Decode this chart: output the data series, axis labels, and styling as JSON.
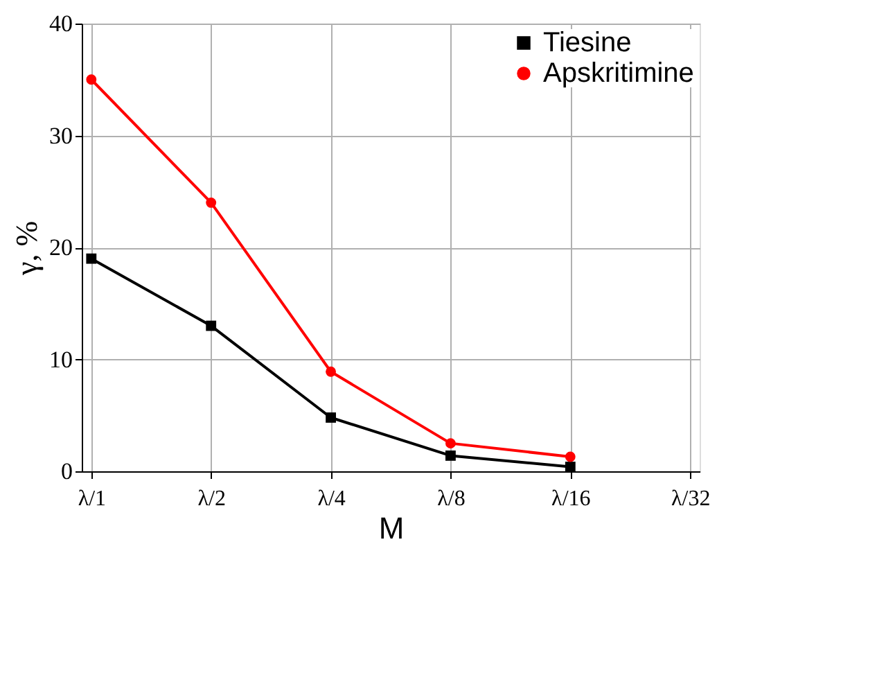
{
  "chart_data": {
    "type": "line",
    "xlabel": "M",
    "ylabel": "γ, %",
    "categories": [
      "λ/1",
      "λ/2",
      "λ/4",
      "λ/8",
      "λ/16",
      "λ/32"
    ],
    "series": [
      {
        "name": "Tiesine",
        "color": "#000000",
        "marker": "square",
        "values": [
          19,
          13,
          4.8,
          1.4,
          0.4,
          null
        ]
      },
      {
        "name": "Apskritimine",
        "color": "#ff0000",
        "marker": "circle",
        "values": [
          35,
          24,
          8.9,
          2.5,
          1.3,
          null
        ]
      }
    ],
    "ylim": [
      0,
      40
    ],
    "yticks": [
      0,
      10,
      20,
      30,
      40
    ],
    "grid": true,
    "legend": "top right",
    "line_style": "solid"
  }
}
